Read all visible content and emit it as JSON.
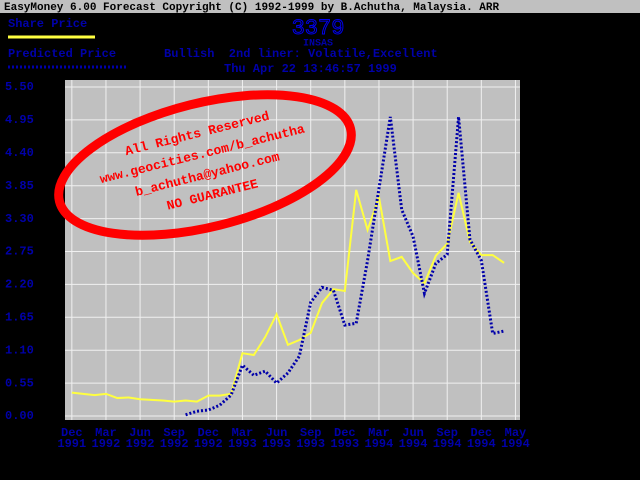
{
  "chart_data": {
    "type": "line",
    "window_title": "EasyMoney 6.00 Forecast Copyright (C) 1992-1999 by B.Achutha, Malaysia. ARR",
    "title": "3379",
    "subtitle": "INSAS",
    "status": "Bullish  2nd liner: Volatile,Excellent",
    "date": "Thu Apr 22 13:46:57 1999",
    "x": [
      0,
      1,
      2,
      3,
      4,
      5,
      6,
      7,
      8,
      9,
      10,
      11,
      12,
      13,
      14,
      15,
      16,
      17,
      18,
      19,
      20,
      21,
      22,
      23,
      24,
      25,
      26,
      27,
      28,
      29,
      30,
      31,
      32,
      33,
      34,
      35,
      36,
      37,
      38
    ],
    "series": [
      {
        "name": "Share Price",
        "color": "#ffff40",
        "style": "solid",
        "values": [
          0.39,
          0.37,
          0.35,
          0.37,
          0.3,
          0.31,
          0.28,
          0.27,
          0.26,
          0.24,
          0.26,
          0.24,
          0.34,
          0.34,
          0.37,
          1.05,
          1.02,
          1.32,
          1.7,
          1.19,
          1.27,
          1.39,
          1.89,
          2.12,
          2.09,
          3.78,
          3.11,
          3.66,
          2.59,
          2.66,
          2.39,
          2.22,
          2.68,
          2.88,
          3.73,
          2.91,
          2.69,
          2.69,
          2.56
        ]
      },
      {
        "name": "Predicted Price",
        "color": "#0000aa",
        "style": "dotted",
        "values": [
          null,
          null,
          null,
          null,
          null,
          null,
          null,
          null,
          null,
          null,
          0.02,
          0.08,
          0.1,
          0.18,
          0.35,
          0.85,
          0.68,
          0.75,
          0.55,
          0.72,
          1.0,
          1.9,
          2.15,
          2.1,
          1.52,
          1.55,
          2.6,
          3.8,
          5.0,
          3.45,
          3.0,
          2.05,
          2.55,
          2.7,
          5.0,
          2.95,
          2.6,
          1.38,
          1.42
        ]
      }
    ],
    "xlim": [
      -0.6,
      39.4
    ],
    "xticks": [
      {
        "value": 0,
        "label": "Dec 1991"
      },
      {
        "value": 3,
        "label": "Mar 1992"
      },
      {
        "value": 6,
        "label": "Jun 1992"
      },
      {
        "value": 9,
        "label": "Sep 1992"
      },
      {
        "value": 12,
        "label": "Dec 1992"
      },
      {
        "value": 15,
        "label": "Mar 1993"
      },
      {
        "value": 18,
        "label": "Jun 1993"
      },
      {
        "value": 21,
        "label": "Sep 1993"
      },
      {
        "value": 24,
        "label": "Dec 1993"
      },
      {
        "value": 27,
        "label": "Mar 1994"
      },
      {
        "value": 30,
        "label": "Jun 1994"
      },
      {
        "value": 33,
        "label": "Sep 1994"
      },
      {
        "value": 36,
        "label": "Dec 1994"
      },
      {
        "value": 39,
        "label": "May 1994"
      }
    ],
    "ylim": [
      0,
      5.5
    ],
    "yticks": [
      {
        "value": 0,
        "label": "0.00"
      },
      0.55,
      {
        "value": 1.1,
        "label": "1.10"
      },
      1.65,
      {
        "value": 2.2,
        "label": "2.20"
      },
      2.75,
      {
        "value": 3.3,
        "label": "3.30"
      },
      3.85,
      {
        "value": 4.4,
        "label": "4.40"
      },
      4.95,
      {
        "value": 5.5,
        "label": "5.50"
      }
    ],
    "grid": true,
    "annotations": [
      "All Rights Reserved",
      "www.geocities.com/b_achutha",
      "b_achutha@yahoo.com",
      "NO GUARANTEE"
    ]
  }
}
